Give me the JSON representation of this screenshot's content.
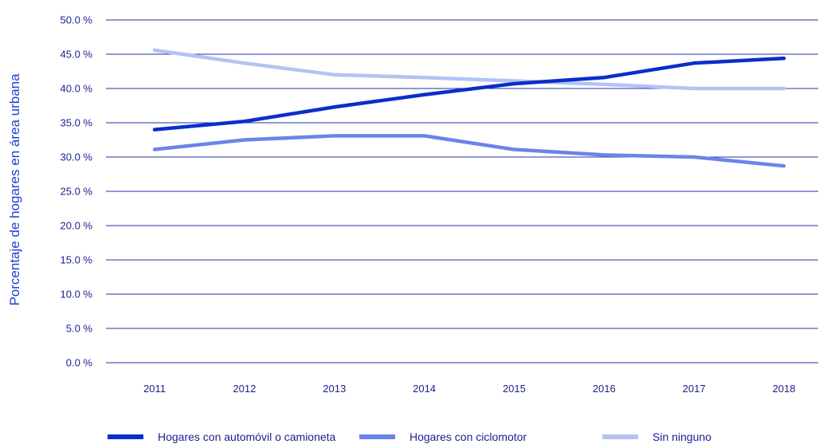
{
  "chart_data": {
    "type": "line",
    "title": "",
    "xlabel": "",
    "ylabel": "Porcentaje de hogares en área urbana",
    "categories": [
      "2011",
      "2012",
      "2013",
      "2014",
      "2015",
      "2016",
      "2017",
      "2018"
    ],
    "y_ticks": [
      "0.0 %",
      "5.0 %",
      "10.0 %",
      "15.0 %",
      "20.0 %",
      "25.0 %",
      "30.0 %",
      "35.0 %",
      "40.0 %",
      "45.0 %",
      "50.0 %"
    ],
    "ylim": [
      0,
      50
    ],
    "grid": true,
    "legend_position": "bottom",
    "series": [
      {
        "name": "Hogares con automóvil o camioneta",
        "color": "#0a2ecb",
        "values": [
          34.0,
          35.2,
          37.3,
          39.1,
          40.7,
          41.6,
          43.7,
          44.4
        ]
      },
      {
        "name": "Hogares con ciclomotor",
        "color": "#6a85e6",
        "values": [
          31.1,
          32.5,
          33.1,
          33.1,
          31.1,
          30.3,
          30.0,
          28.7
        ]
      },
      {
        "name": "Sin ninguno",
        "color": "#b3c3f4",
        "values": [
          45.6,
          43.7,
          42.0,
          41.6,
          41.1,
          40.6,
          40.0,
          40.0
        ]
      }
    ]
  }
}
